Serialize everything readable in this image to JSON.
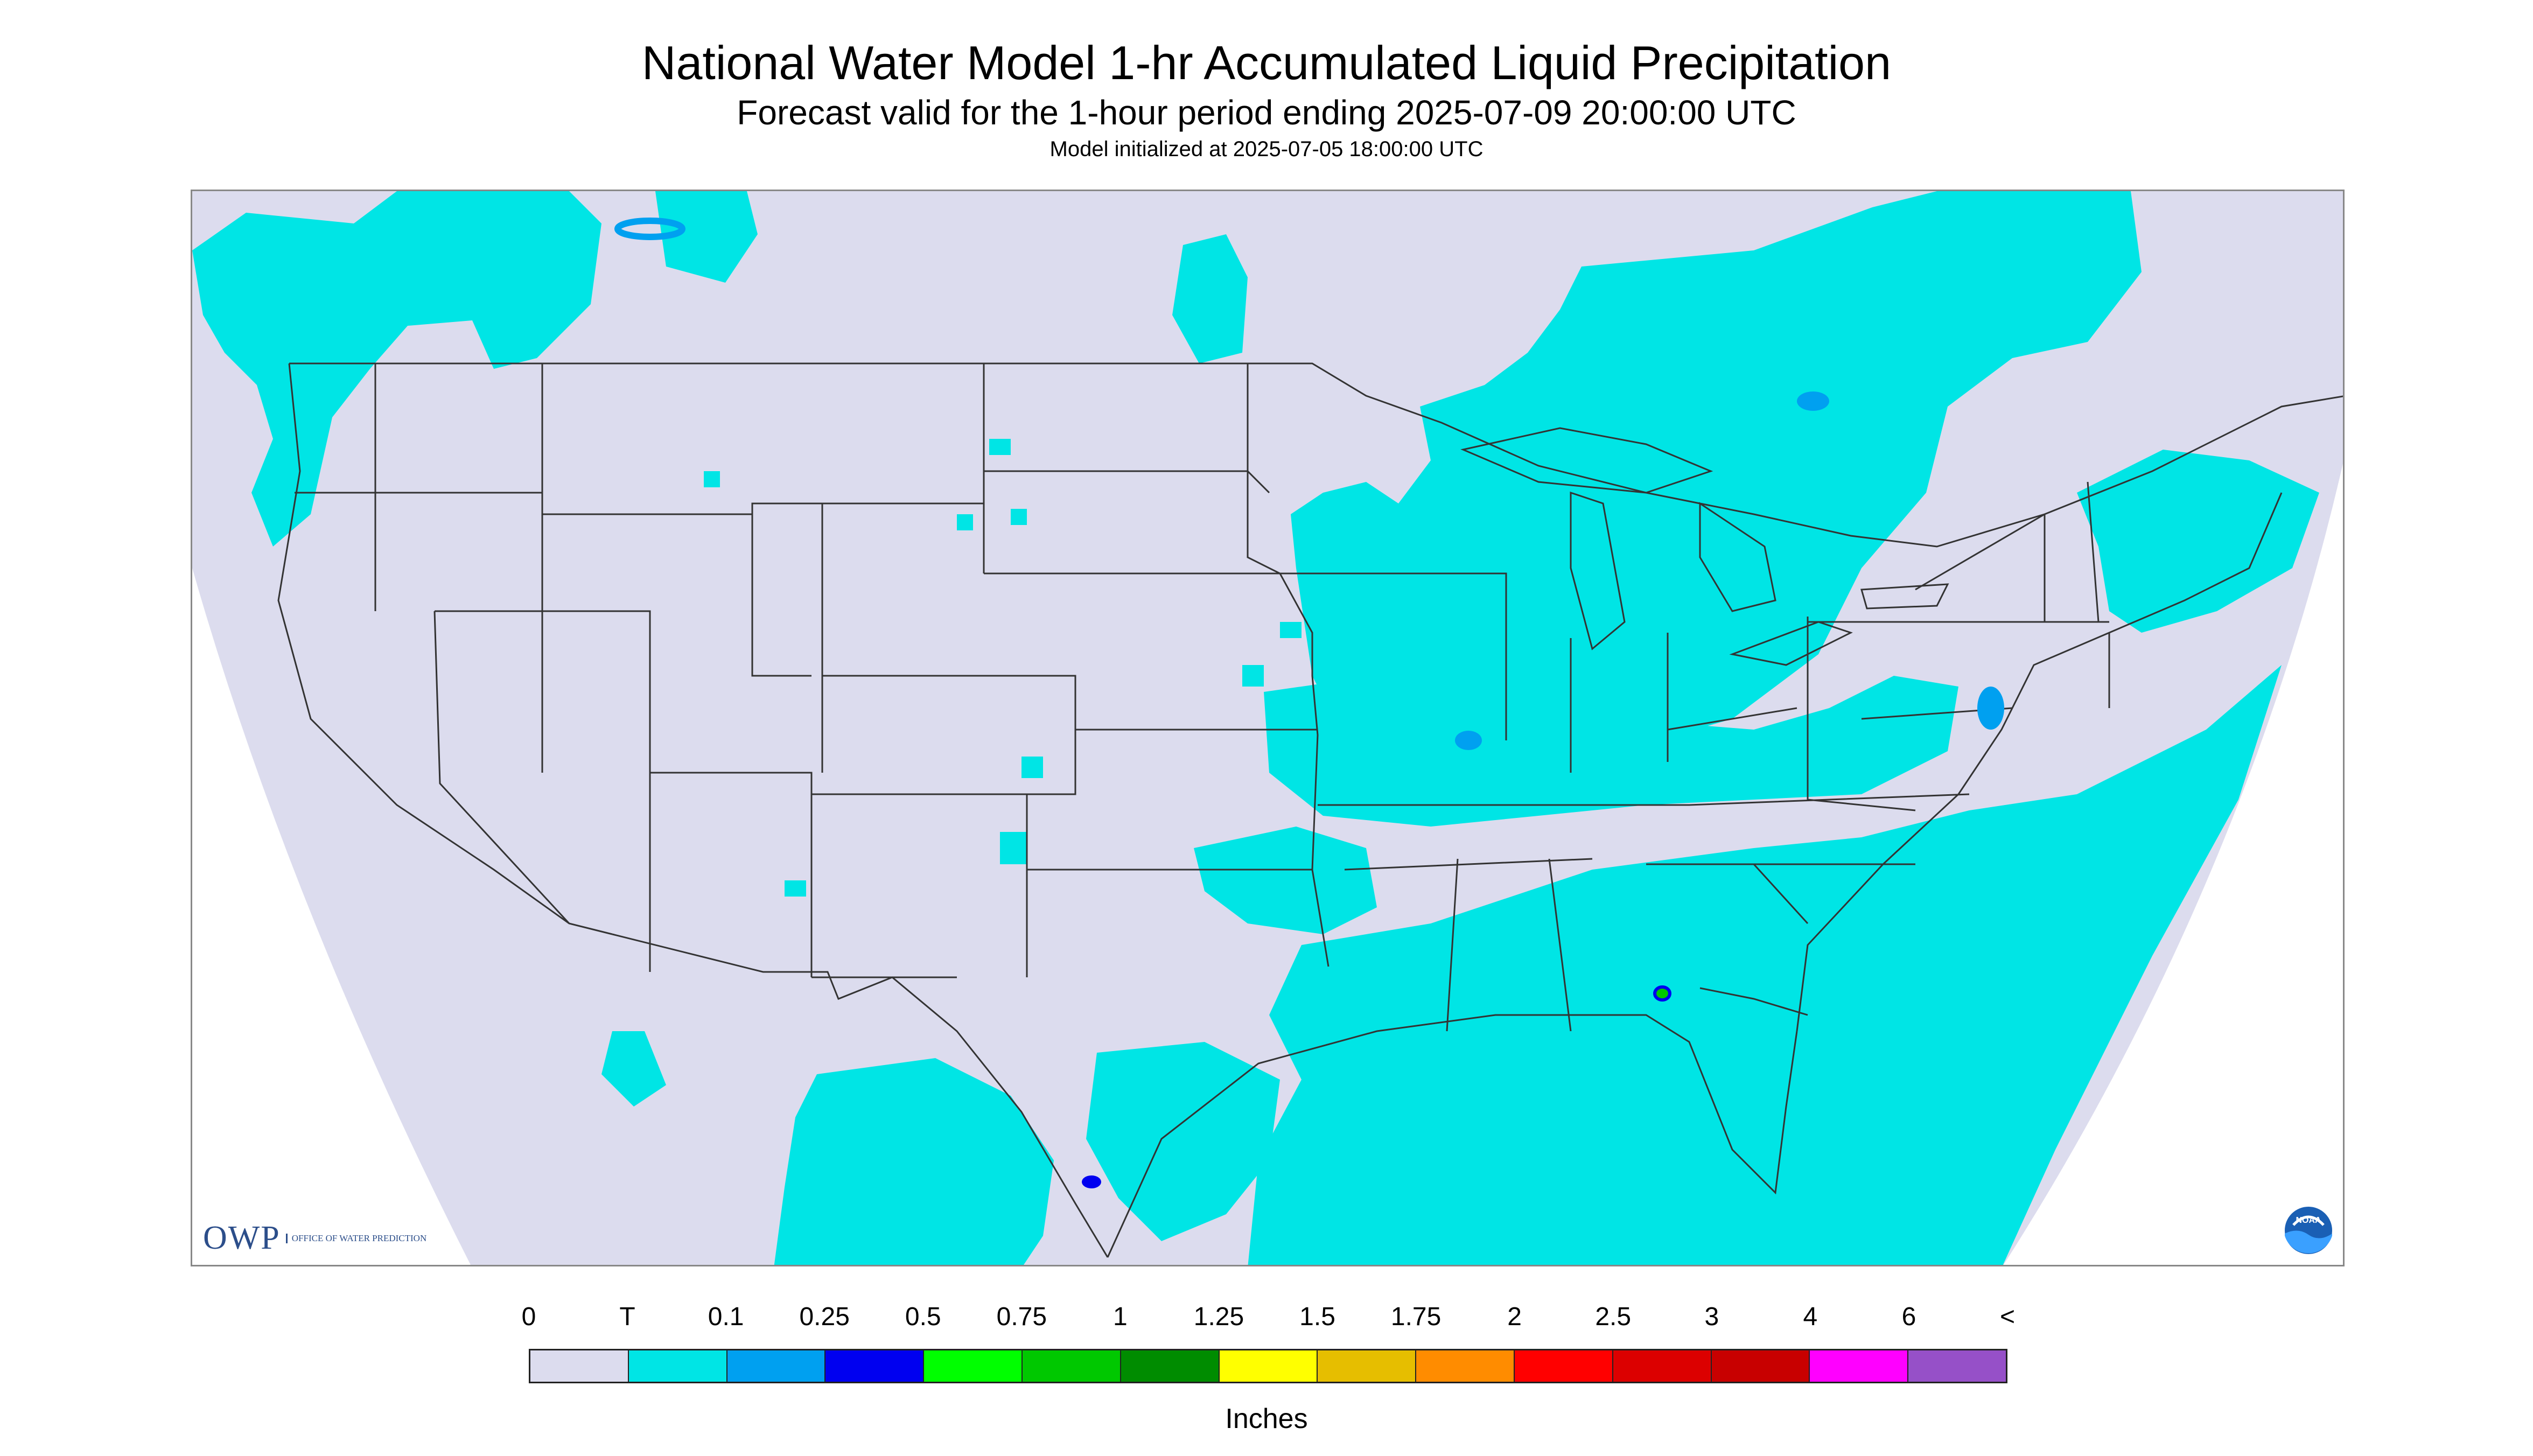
{
  "header": {
    "title": "National Water Model 1-hr Accumulated Liquid Precipitation",
    "subtitle": "Forecast valid for the 1-hour period ending 2025-07-09 20:00:00 UTC",
    "init_text": "Model initialized at 2025-07-05 18:00:00 UTC"
  },
  "logos": {
    "owp_abbrev": "OWP",
    "owp_full": "OFFICE OF WATER PREDICTION",
    "noaa": "NOAA"
  },
  "map": {
    "region": "Contiguous United States",
    "background_color": "#dcdcee",
    "outside_color": "#ffffff",
    "boundary_color": "#333333",
    "dominant_precip_color": "#00e5e5"
  },
  "legend": {
    "labels": [
      "0",
      "T",
      "0.1",
      "0.25",
      "0.5",
      "0.75",
      "1",
      "1.25",
      "1.5",
      "1.75",
      "2",
      "2.5",
      "3",
      "4",
      "6",
      "<"
    ],
    "colors": [
      "#dcdcee",
      "#00e5e5",
      "#00a0f0",
      "#0000f0",
      "#00ff00",
      "#00c800",
      "#008c00",
      "#ffff00",
      "#e6be00",
      "#ff8c00",
      "#ff0000",
      "#dc0000",
      "#c80000",
      "#ff00ff",
      "#9650c8"
    ],
    "units": "Inches"
  }
}
